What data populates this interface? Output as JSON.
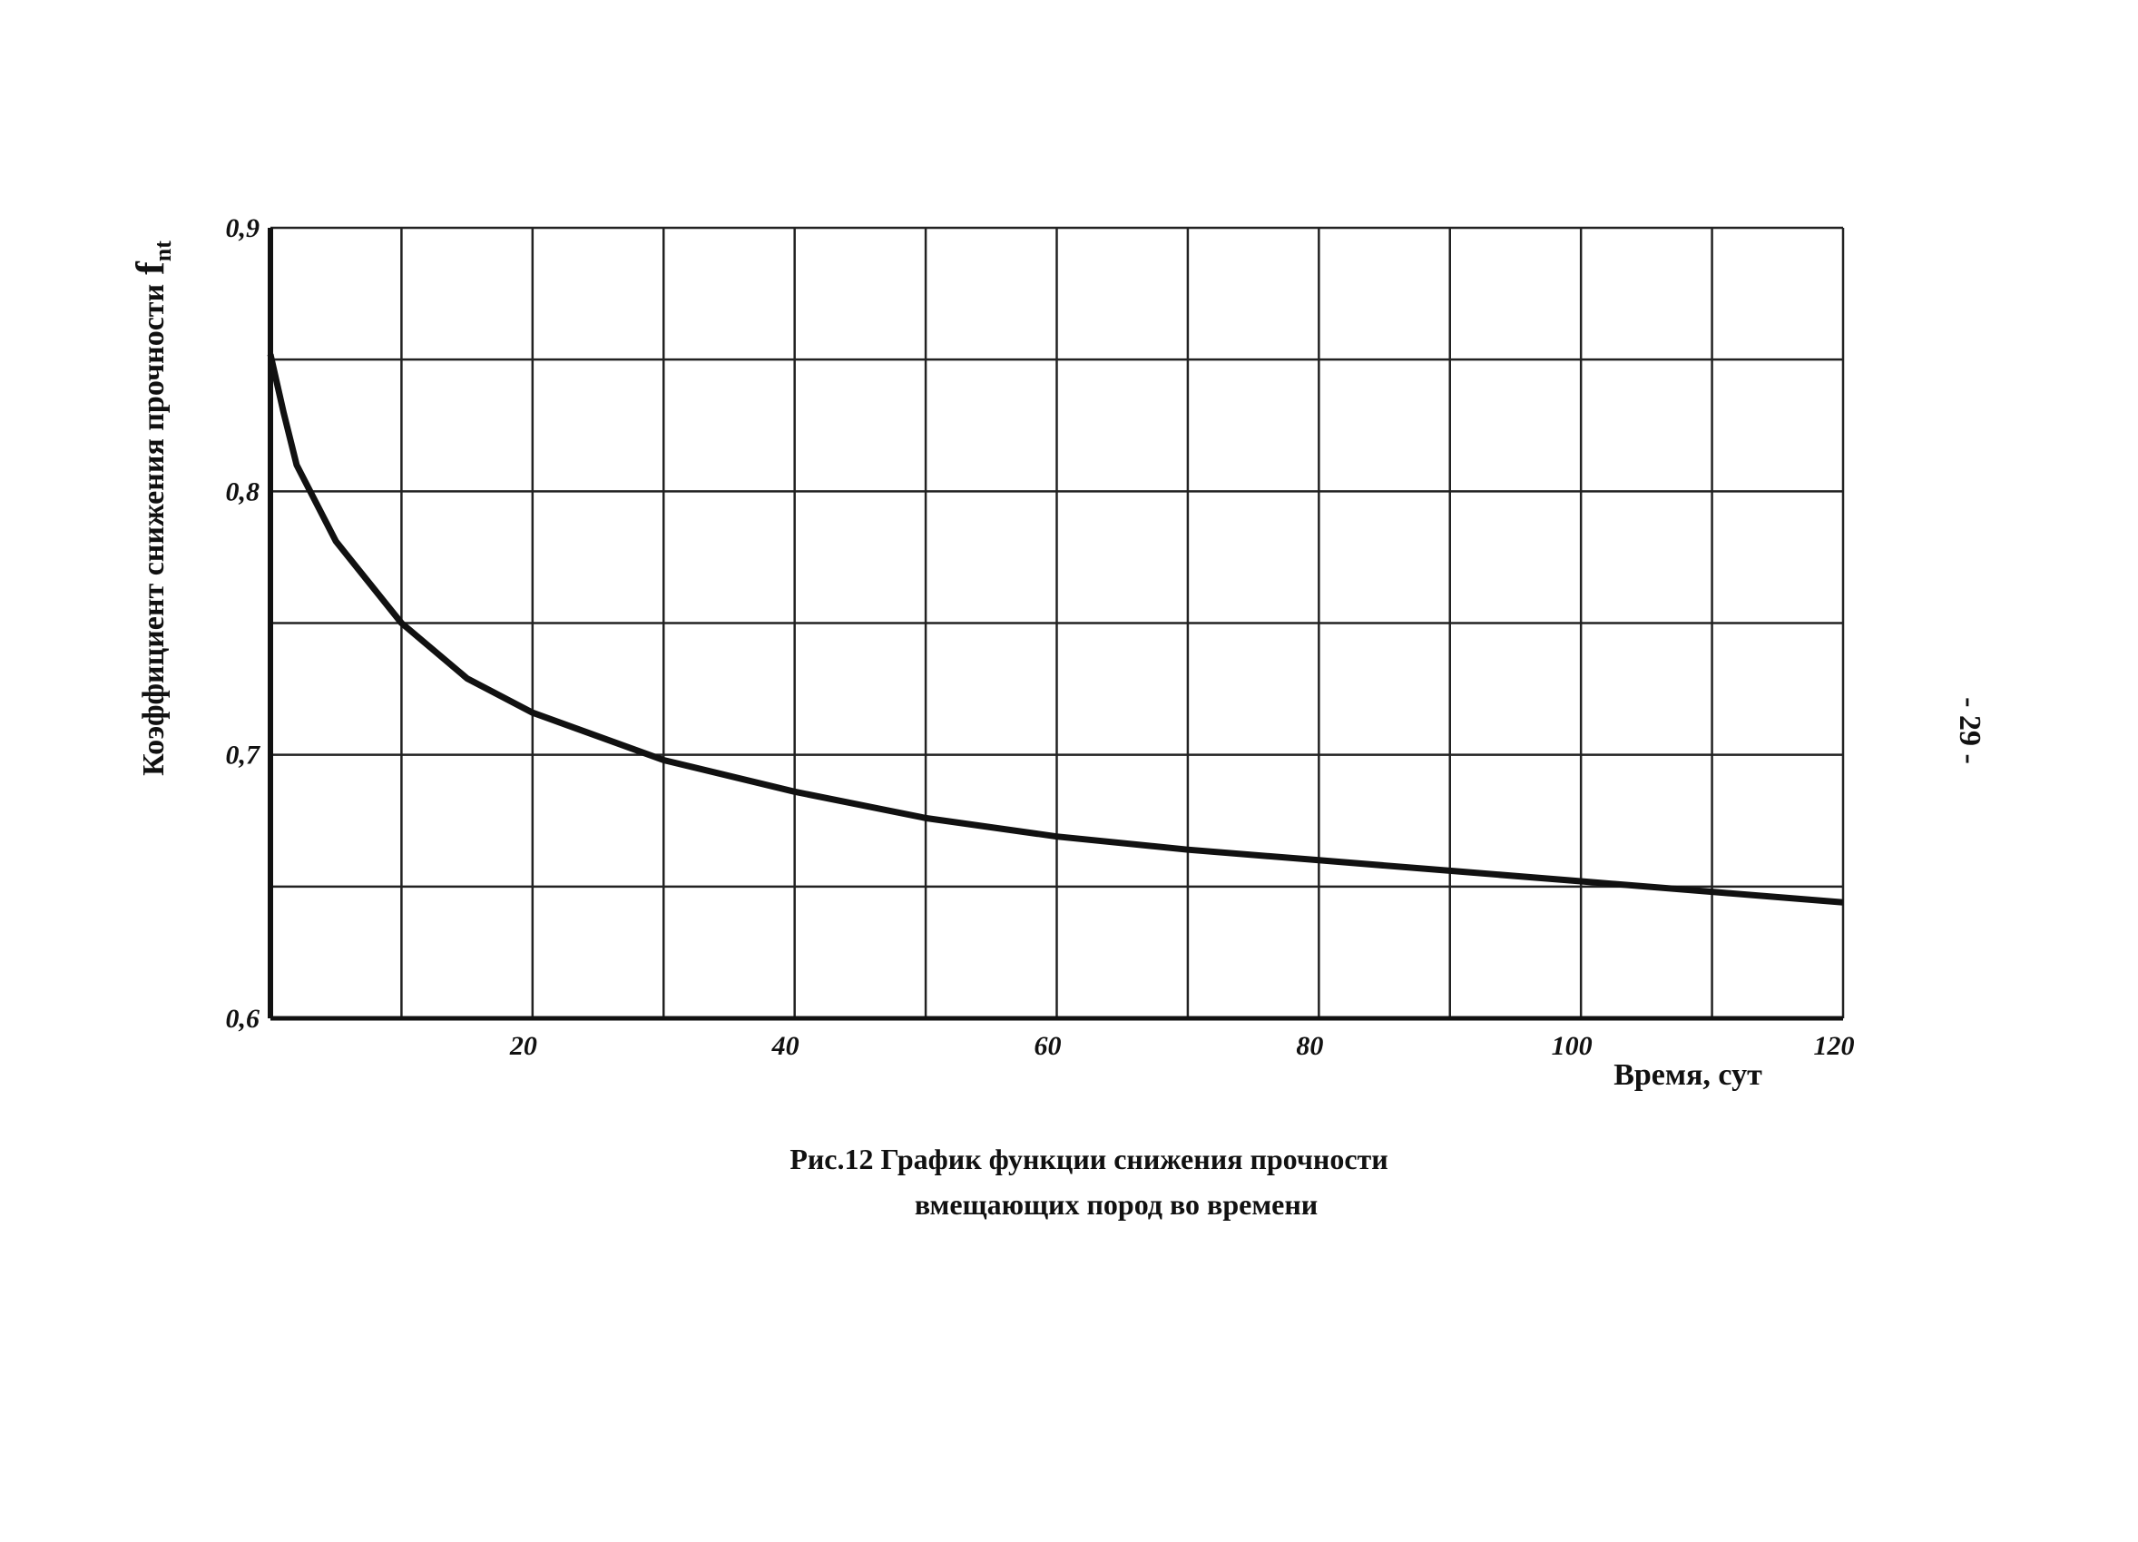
{
  "chart_data": {
    "type": "line",
    "caption": [
      "Рис.12  График функции снижения прочности",
      "вмещающих пород во времени"
    ],
    "page_number": "- 29 -",
    "xlabel": "Время, сут",
    "ylabel": "Коэффициент снижения прочности",
    "ylabel_symbol": "f",
    "ylabel_subscript": "nt",
    "x": [
      0,
      1,
      2,
      5,
      10,
      15,
      20,
      30,
      40,
      50,
      60,
      70,
      80,
      90,
      100,
      110,
      120
    ],
    "series": [
      {
        "name": "f_nt",
        "color": "#111111",
        "values": [
          0.852,
          0.83,
          0.81,
          0.781,
          0.75,
          0.729,
          0.716,
          0.698,
          0.686,
          0.676,
          0.669,
          0.664,
          0.66,
          0.656,
          0.652,
          0.648,
          0.644
        ]
      }
    ],
    "xlim": [
      0,
      120
    ],
    "ylim": [
      0.6,
      0.9
    ],
    "xticks": [
      20,
      40,
      60,
      80,
      100,
      120
    ],
    "xminorticks": [
      10,
      30,
      50,
      70,
      90,
      110
    ],
    "yticks": [
      {
        "value": 0.6,
        "label": "0,6"
      },
      {
        "value": 0.7,
        "label": "0,7"
      },
      {
        "value": 0.8,
        "label": "0,8"
      },
      {
        "value": 0.9,
        "label": "0,9"
      }
    ],
    "yminorticks": [
      0.65,
      0.75,
      0.85
    ],
    "grid": true
  }
}
